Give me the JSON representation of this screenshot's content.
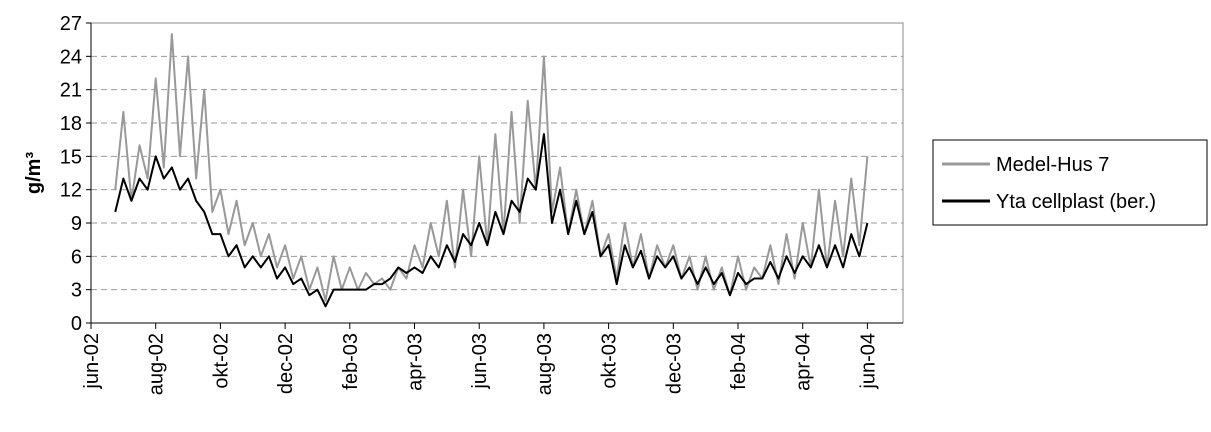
{
  "chart_data": {
    "type": "line",
    "y_label": "g/m³",
    "x": [
      0.75,
      1.0,
      1.25,
      1.5,
      1.75,
      2.0,
      2.25,
      2.5,
      2.75,
      3.0,
      3.25,
      3.5,
      3.75,
      4.0,
      4.25,
      4.5,
      4.75,
      5.0,
      5.25,
      5.5,
      5.75,
      6.0,
      6.25,
      6.5,
      6.75,
      7.0,
      7.25,
      7.5,
      7.75,
      8.0,
      8.25,
      8.5,
      8.75,
      9.0,
      9.25,
      9.5,
      9.75,
      10.0,
      10.25,
      10.5,
      10.75,
      11.0,
      11.25,
      11.5,
      11.75,
      12.0,
      12.25,
      12.5,
      12.75,
      13.0,
      13.25,
      13.5,
      13.75,
      14.0,
      14.25,
      14.5,
      14.75,
      15.0,
      15.25,
      15.5,
      15.75,
      16.0,
      16.25,
      16.5,
      16.75,
      17.0,
      17.25,
      17.5,
      17.75,
      18.0,
      18.25,
      18.5,
      18.75,
      19.0,
      19.25,
      19.5,
      19.75,
      20.0,
      20.25,
      20.5,
      20.75,
      21.0,
      21.25,
      21.5,
      21.75,
      22.0,
      22.25,
      22.5,
      22.75,
      23.0,
      23.25,
      23.5,
      23.75,
      24.0
    ],
    "series": [
      {
        "name": "Medel-Hus 7",
        "color": "#999999",
        "width": 2,
        "values": [
          12,
          19,
          11,
          16,
          13,
          22,
          14,
          26,
          15,
          24,
          13,
          21,
          10,
          12,
          8,
          11,
          7,
          9,
          6,
          8,
          5,
          7,
          4,
          6,
          3,
          5,
          2,
          6,
          3,
          5,
          3,
          4.5,
          3.5,
          4,
          3,
          5,
          4,
          7,
          5,
          9,
          6,
          11,
          5,
          12,
          6,
          15,
          7,
          17,
          8,
          19,
          9,
          20,
          12,
          24,
          10,
          14,
          8,
          12,
          8,
          11,
          6,
          8,
          4,
          9,
          5,
          8,
          4,
          7,
          5,
          7,
          4,
          6,
          3,
          6,
          3,
          5,
          2.5,
          6,
          3,
          5,
          4,
          7,
          3.5,
          8,
          4,
          9,
          5,
          12,
          5,
          11,
          6,
          13,
          7,
          15
        ]
      },
      {
        "name": "Yta cellplast (ber.)",
        "color": "#000000",
        "width": 2,
        "values": [
          10,
          13,
          11,
          13,
          12,
          15,
          13,
          14,
          12,
          13,
          11,
          10,
          8,
          8,
          6,
          7,
          5,
          6,
          5,
          6,
          4,
          5,
          3.5,
          4,
          2.5,
          3,
          1.5,
          3,
          3,
          3,
          3,
          3,
          3.5,
          3.5,
          4,
          5,
          4.5,
          5,
          4.5,
          6,
          5,
          7,
          5.5,
          8,
          7,
          9,
          7,
          10,
          8,
          11,
          10,
          13,
          12,
          17,
          9,
          12,
          8,
          11,
          8,
          10,
          6,
          7,
          3.5,
          7,
          5,
          6.5,
          4,
          6,
          5,
          6,
          4,
          5,
          3.5,
          5,
          3.5,
          4.5,
          2.5,
          4.5,
          3.5,
          4,
          4,
          5.5,
          4,
          6,
          4.5,
          6,
          5,
          7,
          5,
          7,
          5,
          8,
          6,
          9
        ]
      }
    ],
    "xlim": [
      0,
      25.1
    ],
    "xticks": [
      {
        "value": 0,
        "label": "jun-02"
      },
      {
        "value": 2,
        "label": "aug-02"
      },
      {
        "value": 4,
        "label": "okt-02"
      },
      {
        "value": 6,
        "label": "dec-02"
      },
      {
        "value": 8,
        "label": "feb-03"
      },
      {
        "value": 10,
        "label": "apr-03"
      },
      {
        "value": 12,
        "label": "jun-03"
      },
      {
        "value": 14,
        "label": "aug-03"
      },
      {
        "value": 16,
        "label": "okt-03"
      },
      {
        "value": 18,
        "label": "dec-03"
      },
      {
        "value": 20,
        "label": "feb-04"
      },
      {
        "value": 22,
        "label": "apr-04"
      },
      {
        "value": 24,
        "label": "jun-04"
      }
    ],
    "ylim": [
      0,
      27
    ],
    "yticks": [
      0,
      3,
      6,
      9,
      12,
      15,
      18,
      21,
      24,
      27
    ],
    "grid": true,
    "legend": "right"
  }
}
